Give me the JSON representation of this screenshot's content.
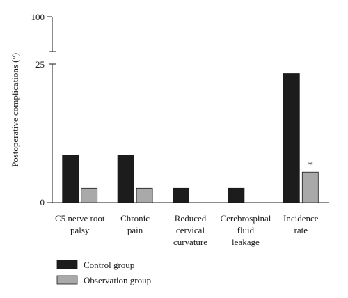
{
  "chart_data": {
    "type": "bar",
    "ylabel": "Postoperative complications (°)",
    "y_ticks": [
      "0",
      "25",
      "100"
    ],
    "y_axis_break": true,
    "categories": [
      [
        "C5 nerve root",
        "palsy"
      ],
      [
        "Chronic",
        "pain"
      ],
      [
        "Reduced",
        "cervical",
        "curvature"
      ],
      [
        "Cerebrospinal",
        "fluid",
        "leakage"
      ],
      [
        "Incidence",
        "rate"
      ]
    ],
    "series": [
      {
        "name": "Control group",
        "color": "#1c1c1c",
        "values": [
          8.5,
          8.5,
          2.6,
          2.6,
          23.3
        ]
      },
      {
        "name": "Observation group",
        "color": "#a9a9a9",
        "values": [
          2.6,
          2.6,
          0,
          0,
          5.5
        ]
      }
    ],
    "annotations": [
      {
        "category_index": 4,
        "series_index": 1,
        "text": "*"
      }
    ],
    "ylim": [
      0,
      25
    ],
    "legend_position": "bottom-left",
    "grid": false
  }
}
